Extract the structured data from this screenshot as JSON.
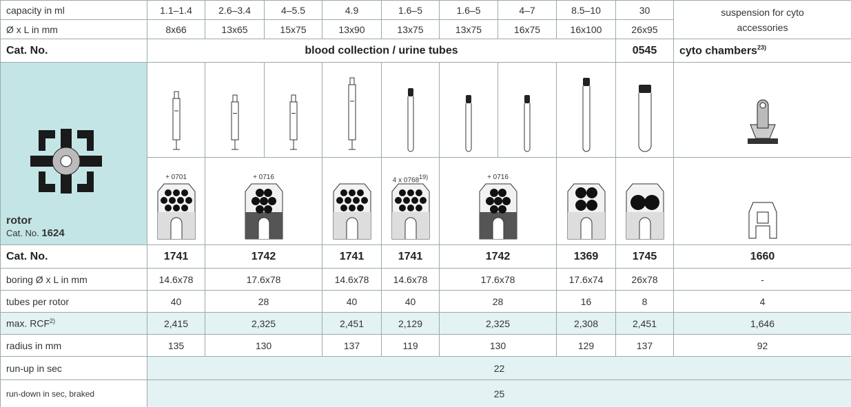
{
  "header": {
    "rows": [
      {
        "label": "capacity in ml",
        "values": [
          "1.1–1.4",
          "2.6–3.4",
          "4–5.5",
          "4.9",
          "1.6–5",
          "1.6–5",
          "4–7",
          "8.5–10",
          "30"
        ]
      },
      {
        "label": "Ø x L in mm",
        "values": [
          "8x66",
          "13x65",
          "15x75",
          "13x90",
          "13x75",
          "13x75",
          "16x75",
          "16x100",
          "26x95"
        ]
      }
    ],
    "suspension": "suspension for cyto accessories"
  },
  "category": {
    "label": "Cat. No.",
    "tubes": "blood collection / urine tubes",
    "tube_cat": "0545",
    "cyto": "cyto chambers",
    "cyto_note": "23)"
  },
  "rotor": {
    "label": "rotor",
    "cat_label": "Cat. No.",
    "cat": "1624"
  },
  "adapters": {
    "labels": [
      "+ 0701",
      "+ 0716",
      "4 x 0768",
      "+ 0716"
    ],
    "note": "19)"
  },
  "specs": [
    {
      "label": "Cat. No.",
      "values": [
        "1741",
        "1742",
        "1741",
        "1741",
        "1742",
        "1369",
        "1745",
        "1660"
      ]
    },
    {
      "label": "boring Ø x L in mm",
      "values": [
        "14.6x78",
        "17.6x78",
        "14.6x78",
        "14.6x78",
        "17.6x78",
        "17.6x74",
        "26x78",
        "-"
      ]
    },
    {
      "label": "tubes per rotor",
      "values": [
        "40",
        "28",
        "40",
        "40",
        "28",
        "16",
        "8",
        "4"
      ]
    },
    {
      "label": "max. RCF",
      "note": "2)",
      "values": [
        "2,415",
        "2,325",
        "2,451",
        "2,129",
        "2,325",
        "2,308",
        "2,451",
        "1,646"
      ]
    },
    {
      "label": "radius in mm",
      "values": [
        "135",
        "130",
        "137",
        "119",
        "130",
        "129",
        "137",
        "92"
      ]
    }
  ],
  "timing": [
    {
      "label": "run-up in sec",
      "value": "22"
    },
    {
      "label": "run-down in sec, braked",
      "value": "25"
    }
  ]
}
